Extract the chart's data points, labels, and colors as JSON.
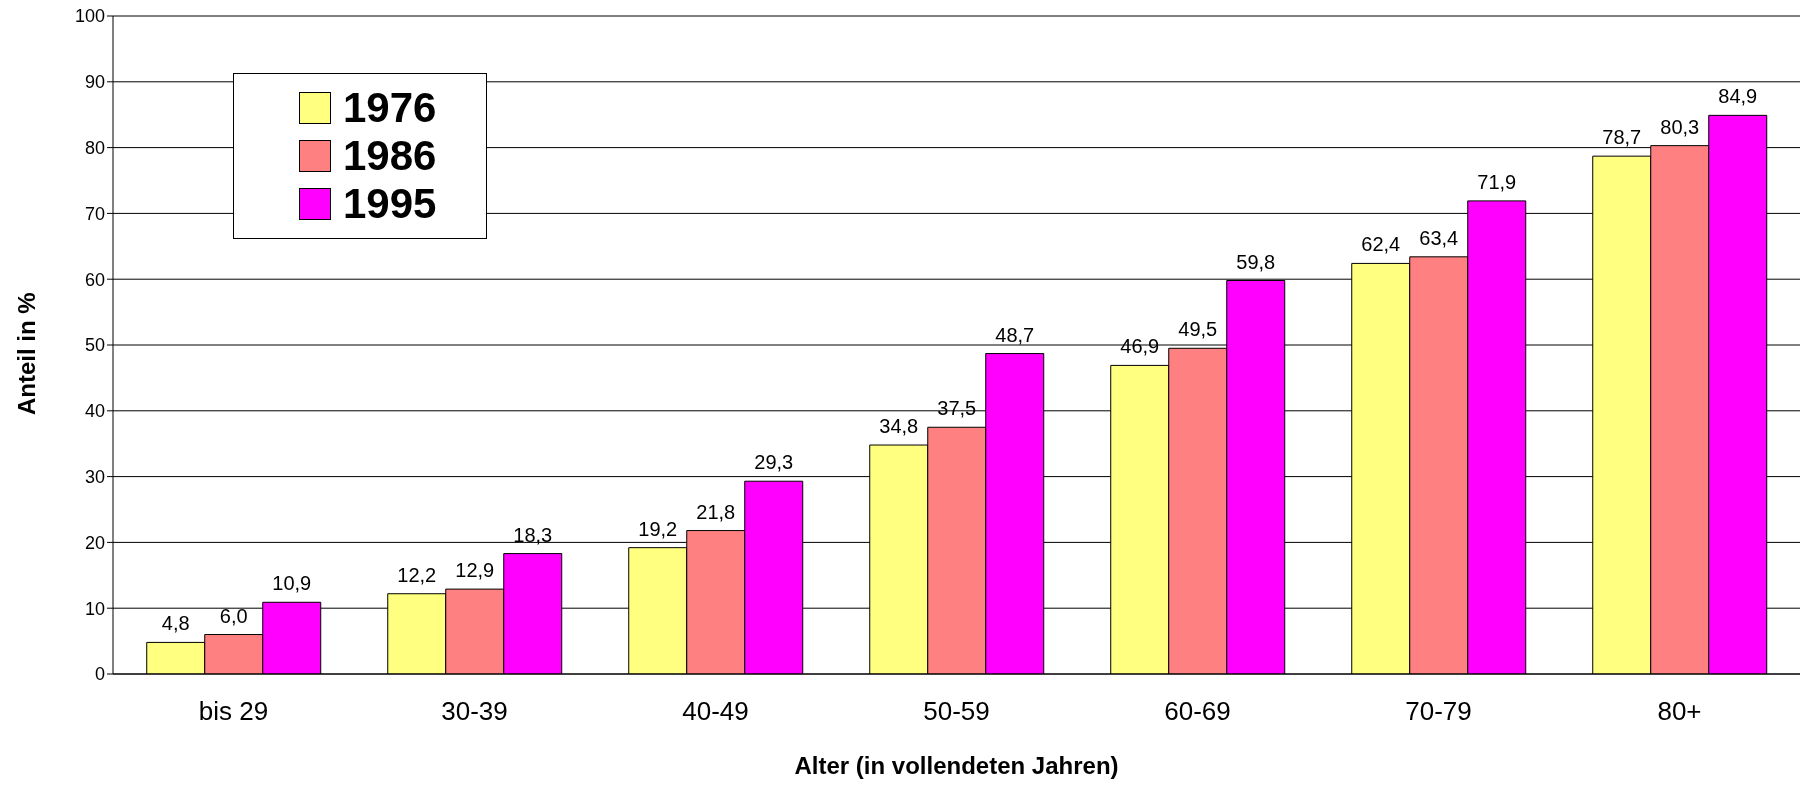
{
  "chart_data": {
    "type": "bar",
    "xlabel": "Alter (in vollendeten Jahren)",
    "ylabel": "Anteil in %",
    "categories": [
      "bis 29",
      "30-39",
      "40-49",
      "50-59",
      "60-69",
      "70-79",
      "80+"
    ],
    "series": [
      {
        "name": "1976",
        "color": "#ffff80",
        "values": [
          4.8,
          12.2,
          19.2,
          34.8,
          46.9,
          62.4,
          78.7
        ],
        "value_labels": [
          "4,8",
          "12,2",
          "19,2",
          "34,8",
          "46,9",
          "62,4",
          "78,7"
        ]
      },
      {
        "name": "1986",
        "color": "#ff8080",
        "values": [
          6.0,
          12.9,
          21.8,
          37.5,
          49.5,
          63.4,
          80.3
        ],
        "value_labels": [
          "6,0",
          "12,9",
          "21,8",
          "37,5",
          "49,5",
          "63,4",
          "80,3"
        ]
      },
      {
        "name": "1995",
        "color": "#ff00ff",
        "values": [
          10.9,
          18.3,
          29.3,
          48.7,
          59.8,
          71.9,
          84.9
        ],
        "value_labels": [
          "10,9",
          "18,3",
          "29,3",
          "48,7",
          "59,8",
          "71,9",
          "84,9"
        ]
      }
    ],
    "ylim": [
      0,
      100
    ],
    "yticks": [
      0,
      10,
      20,
      30,
      40,
      50,
      60,
      70,
      80,
      90,
      100
    ],
    "grid": "y",
    "legend": "top left"
  }
}
